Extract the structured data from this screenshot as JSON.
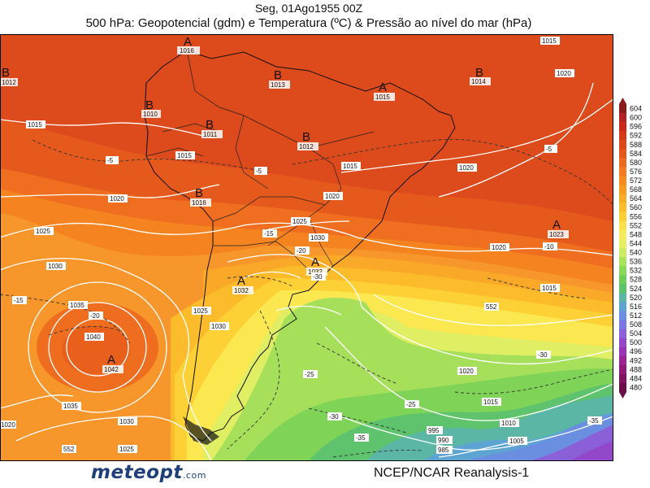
{
  "header": {
    "date_line": "Seg, 01Ago1955 00Z",
    "title_line": "500 hPa: Geopotencial (gdm) e Temperatura (ºC) & Pressão ao nível do mar (hPa)"
  },
  "map": {
    "region": "South America and South Atlantic",
    "pressure_centers": [
      {
        "type": "A",
        "value": "1016"
      },
      {
        "type": "B",
        "value": "1012"
      },
      {
        "type": "B",
        "value": "1010"
      },
      {
        "type": "B",
        "value": "1013"
      },
      {
        "type": "A",
        "value": "1015"
      },
      {
        "type": "B",
        "value": "1014"
      },
      {
        "type": "B",
        "value": "1011"
      },
      {
        "type": "B",
        "value": "1012"
      },
      {
        "type": "B",
        "value": "1016"
      },
      {
        "type": "A",
        "value": "1023"
      },
      {
        "type": "A",
        "value": "1032"
      },
      {
        "type": "A",
        "value": "1032"
      },
      {
        "type": "A",
        "value": "1042"
      }
    ],
    "isobar_labels": [
      "1015",
      "1015",
      "1015",
      "1015",
      "1020",
      "1020",
      "1020",
      "1020",
      "1025",
      "1025",
      "1025",
      "1030",
      "1030",
      "1030",
      "1035",
      "1035",
      "1040",
      "1015",
      "1020",
      "1015",
      "1010",
      "1005",
      "1025",
      "1020",
      "995",
      "990",
      "985",
      "1020",
      "1030"
    ],
    "temp_labels": [
      "-5",
      "-5",
      "-5",
      "-10",
      "-15",
      "-15",
      "-20",
      "-20",
      "-25",
      "-25",
      "-30",
      "-30",
      "-30",
      "-35",
      "-35"
    ],
    "height_labels": [
      "552",
      "552"
    ]
  },
  "color_scale": {
    "values": [
      "604",
      "600",
      "596",
      "592",
      "588",
      "584",
      "580",
      "576",
      "572",
      "568",
      "564",
      "560",
      "556",
      "552",
      "548",
      "544",
      "540",
      "536",
      "532",
      "528",
      "524",
      "520",
      "516",
      "512",
      "508",
      "504",
      "500",
      "496",
      "492",
      "488",
      "484",
      "480"
    ],
    "colors": [
      "#8b1a1a",
      "#b22222",
      "#c8281c",
      "#d33a1a",
      "#dc4a1a",
      "#e4571c",
      "#ec6a1d",
      "#f27a1f",
      "#f58a1f",
      "#f79b22",
      "#f9ac25",
      "#fbbd2a",
      "#fdd032",
      "#fbe04c",
      "#f4ec5c",
      "#e6ef62",
      "#cdeb60",
      "#a9e35a",
      "#88d957",
      "#6dcf5a",
      "#5bc46b",
      "#5bb6a5",
      "#5ea4d2",
      "#6a8fe0",
      "#7b78e2",
      "#8a5fd8",
      "#9347c9",
      "#9a32b5",
      "#9b2396",
      "#8f1a78",
      "#7e145e",
      "#6b0f49"
    ]
  },
  "footer": {
    "logo": "meteopt",
    "logo_suffix": ".com",
    "credit": "NCEP/NCAR Reanalysis-1"
  }
}
